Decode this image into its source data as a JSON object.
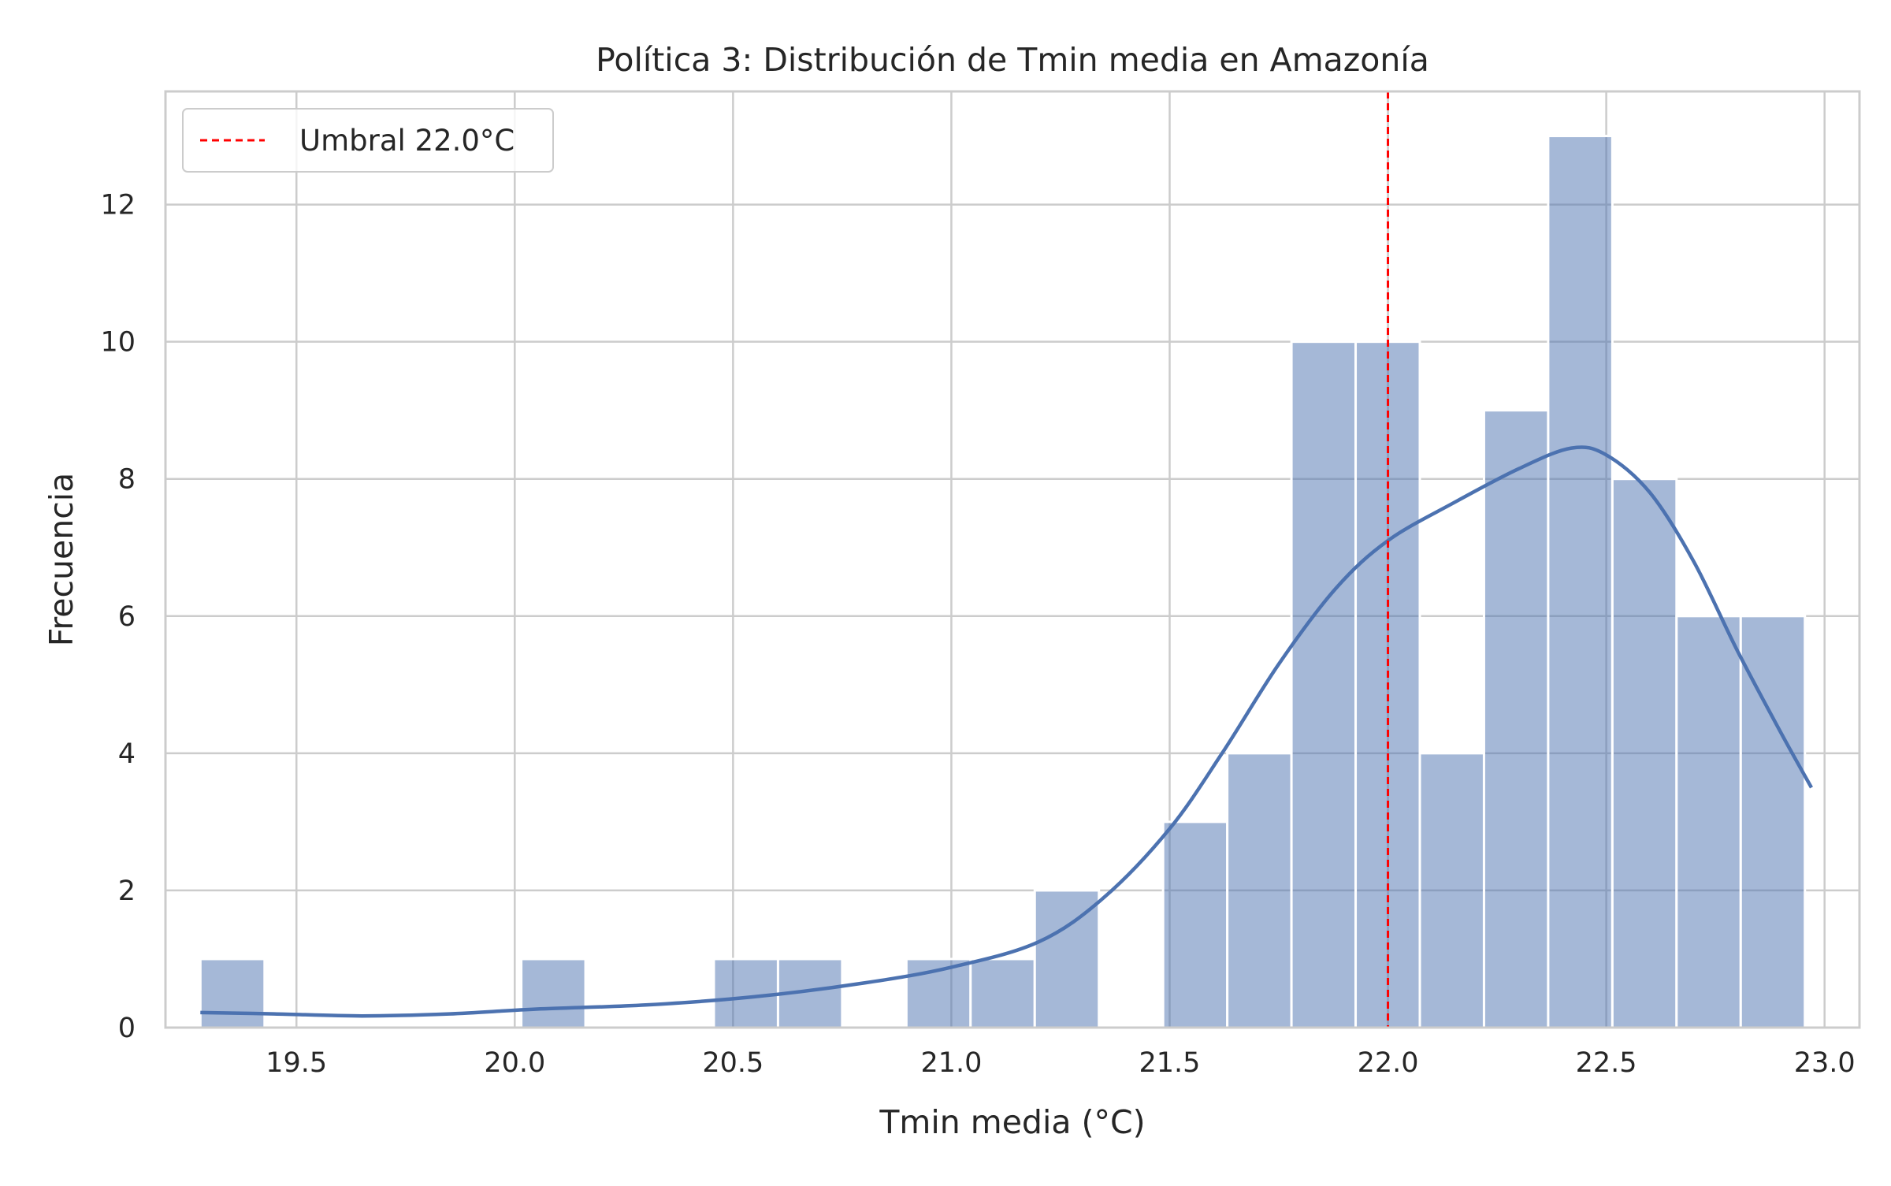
{
  "chart_data": {
    "type": "bar",
    "subtype": "histogram_with_kde",
    "title": "Política 3: Distribución de Tmin media en Amazonía",
    "xlabel": "Tmin media (°C)",
    "ylabel": "Frecuencia",
    "xlim": [
      19.2,
      23.08
    ],
    "ylim": [
      0,
      13.65
    ],
    "x_ticks": [
      "19.5",
      "20.0",
      "20.5",
      "21.0",
      "21.5",
      "22.0",
      "22.5",
      "23.0"
    ],
    "y_ticks": [
      "0",
      "2",
      "4",
      "6",
      "8",
      "10",
      "12"
    ],
    "grid": true,
    "legend_position": "top-left",
    "bins": {
      "start": 19.28,
      "width": 0.147,
      "counts": [
        1,
        0,
        0,
        0,
        0,
        1,
        0,
        0,
        1,
        1,
        0,
        1,
        1,
        2,
        0,
        3,
        4,
        10,
        10,
        4,
        9,
        13,
        8,
        6,
        6
      ]
    },
    "kde": {
      "x": [
        19.28,
        19.45,
        19.65,
        19.85,
        20.05,
        20.3,
        20.55,
        20.8,
        21.0,
        21.2,
        21.35,
        21.5,
        21.62,
        21.75,
        21.88,
        22.0,
        22.15,
        22.3,
        22.42,
        22.5,
        22.6,
        22.7,
        22.8,
        22.9,
        22.97
      ],
      "y": [
        0.22,
        0.2,
        0.17,
        0.2,
        0.27,
        0.33,
        0.45,
        0.65,
        0.88,
        1.25,
        1.9,
        2.9,
        4.0,
        5.3,
        6.4,
        7.1,
        7.65,
        8.15,
        8.45,
        8.35,
        7.8,
        6.8,
        5.5,
        4.3,
        3.5
      ]
    },
    "threshold": {
      "x": 22.0,
      "label": "Umbral 22.0°C"
    },
    "colors": {
      "bar_fill": "#4c72b0",
      "bar_fill_opacity": 0.5,
      "kde_line": "#4c72b0",
      "threshold_line": "#ff0000",
      "grid": "#cccccc",
      "axes_edge": "#cccccc"
    }
  }
}
